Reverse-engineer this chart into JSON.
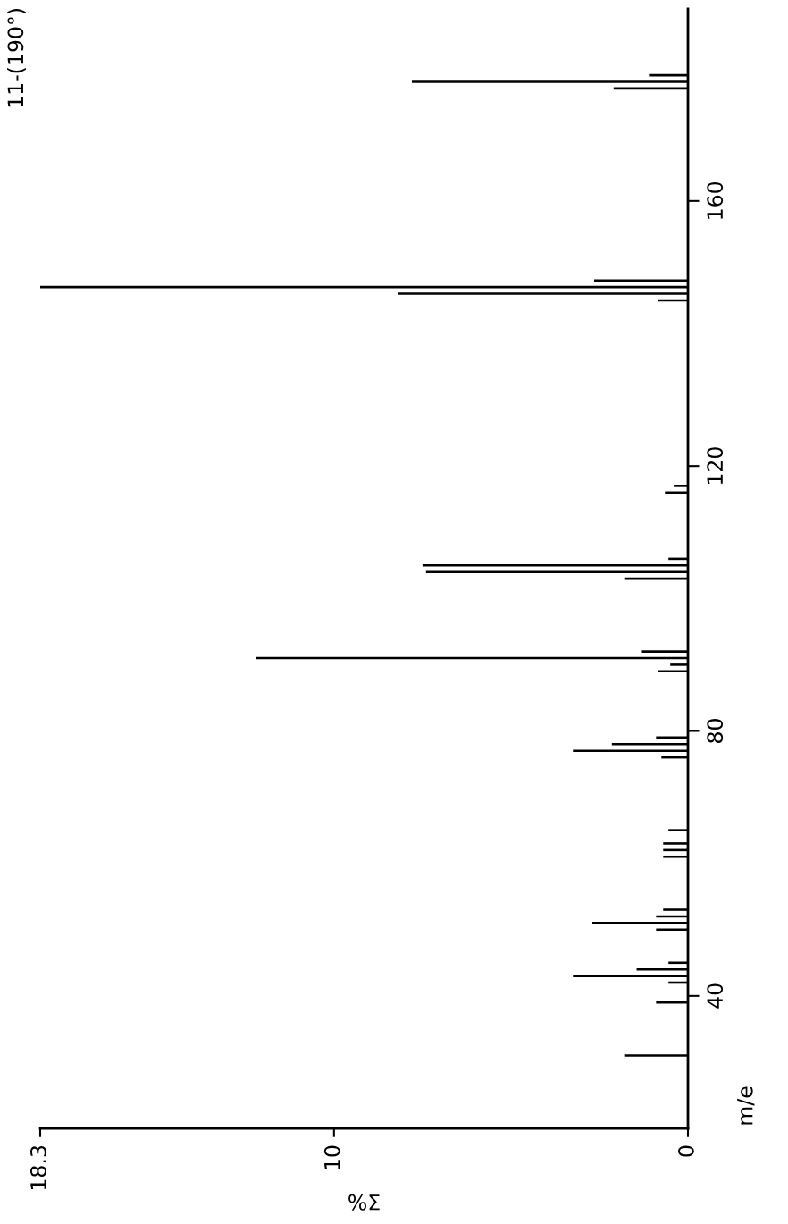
{
  "chart_data": {
    "type": "bar",
    "orientation": "horizontal",
    "title": "11-(190°)",
    "xlabel": "%Σ",
    "ylabel": "m/e",
    "color": "#000000",
    "x": [
      31,
      39,
      42,
      43,
      44,
      45,
      50,
      51,
      52,
      53,
      61,
      62,
      63,
      65,
      76,
      77,
      78,
      79,
      89,
      90,
      91,
      92,
      103,
      104,
      105,
      106,
      116,
      117,
      145,
      146,
      147,
      148,
      177,
      178,
      179
    ],
    "values": [
      1.8,
      0.9,
      0.55,
      3.25,
      1.45,
      0.55,
      0.9,
      2.7,
      0.9,
      0.7,
      0.7,
      0.7,
      0.7,
      0.55,
      0.75,
      3.25,
      2.15,
      0.9,
      0.85,
      0.5,
      12.2,
      1.3,
      1.8,
      7.4,
      7.5,
      0.55,
      0.65,
      0.4,
      0.85,
      8.2,
      18.3,
      2.65,
      2.1,
      7.8,
      1.1
    ],
    "xlim": [
      18.3,
      0
    ],
    "xticks": [
      0,
      10,
      18.3
    ],
    "ylim": [
      20,
      189
    ],
    "yticks": [
      40,
      80,
      120,
      160
    ]
  }
}
